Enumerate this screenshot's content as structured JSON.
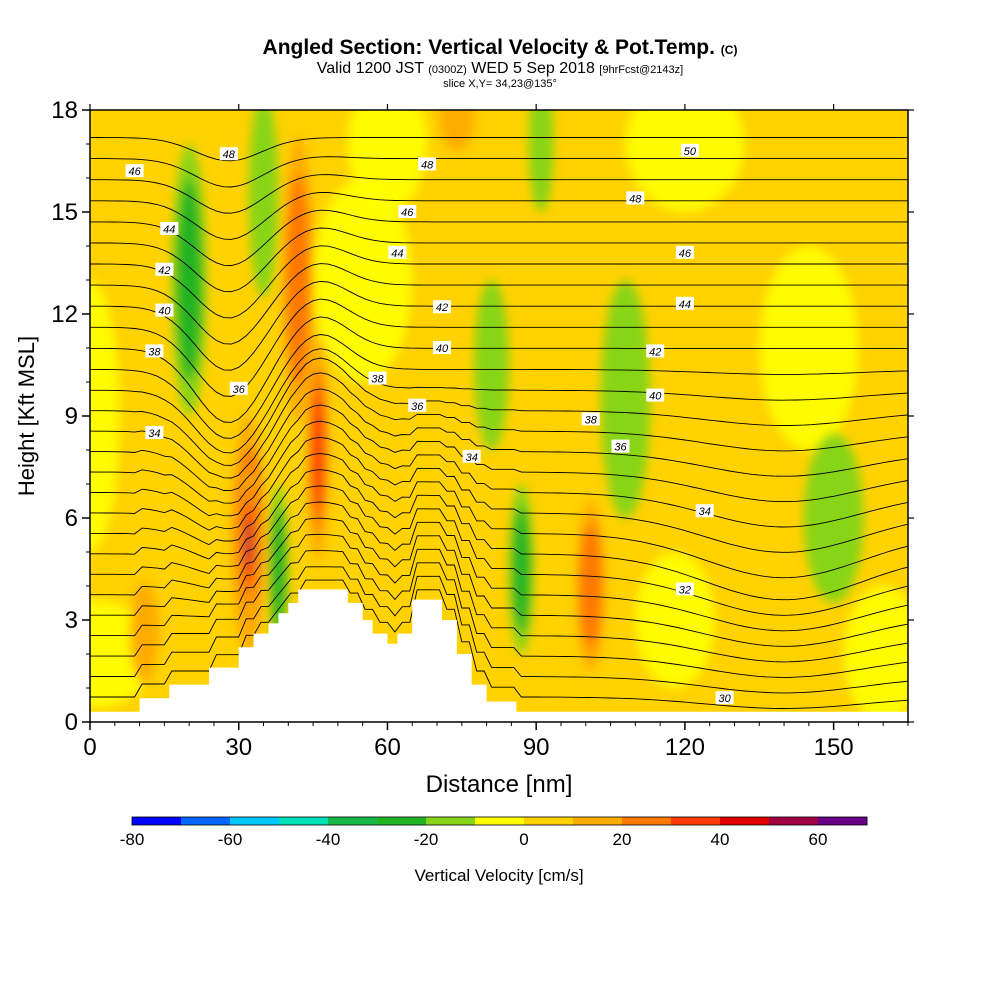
{
  "header": {
    "title_main": "Angled Section: Vertical Velocity & Pot.Temp.",
    "title_mark": "(C)",
    "valid_prefix": "Valid 1200 JST",
    "valid_zone": "(0300Z)",
    "valid_date": "WED 5 Sep 2018",
    "valid_fcst": "[9hrFcst@2143z]",
    "slice": "slice X,Y= 34,23@135°"
  },
  "chart_data": {
    "type": "heatmap",
    "title": "Angled Section: Vertical Velocity & Pot.Temp.",
    "xlabel": "Distance [nm]",
    "ylabel": "Height [Kft MSL]",
    "xlim": [
      0,
      165
    ],
    "ylim": [
      0,
      18
    ],
    "xticks": [
      0,
      30,
      60,
      90,
      120,
      150
    ],
    "yticks": [
      0,
      3,
      6,
      9,
      12,
      15,
      18
    ],
    "colorbar": {
      "label": "Vertical Velocity [cm/s]",
      "tick_labels": [
        -80,
        -60,
        -40,
        -20,
        0,
        20,
        40,
        60
      ],
      "levels": [
        -80,
        -70,
        -60,
        -50,
        -40,
        -30,
        -20,
        -10,
        0,
        10,
        20,
        30,
        40,
        50,
        60,
        70
      ],
      "colors": [
        "#0000ff",
        "#0066ff",
        "#00c8ff",
        "#00e0b8",
        "#19b848",
        "#22b422",
        "#88d418",
        "#ffff00",
        "#ffd200",
        "#ffac00",
        "#ff7800",
        "#ff3c00",
        "#e00000",
        "#a00040",
        "#6a0088"
      ]
    },
    "terrain": [
      [
        0,
        0.3
      ],
      [
        10,
        0.3
      ],
      [
        10,
        0.7
      ],
      [
        16,
        0.7
      ],
      [
        16,
        1.1
      ],
      [
        24,
        1.1
      ],
      [
        24,
        1.6
      ],
      [
        30,
        1.6
      ],
      [
        30,
        2.2
      ],
      [
        33,
        2.2
      ],
      [
        33,
        2.6
      ],
      [
        36,
        2.6
      ],
      [
        36,
        2.9
      ],
      [
        38,
        2.9
      ],
      [
        38,
        3.2
      ],
      [
        40,
        3.2
      ],
      [
        40,
        3.5
      ],
      [
        42,
        3.5
      ],
      [
        42,
        3.9
      ],
      [
        52,
        3.9
      ],
      [
        52,
        3.5
      ],
      [
        55,
        3.5
      ],
      [
        55,
        3.0
      ],
      [
        57,
        3.0
      ],
      [
        57,
        2.6
      ],
      [
        60,
        2.6
      ],
      [
        60,
        2.3
      ],
      [
        62,
        2.3
      ],
      [
        62,
        2.6
      ],
      [
        65,
        2.6
      ],
      [
        65,
        3.6
      ],
      [
        71,
        3.6
      ],
      [
        71,
        3.0
      ],
      [
        74,
        3.0
      ],
      [
        74,
        2.0
      ],
      [
        77,
        2.0
      ],
      [
        77,
        1.1
      ],
      [
        80,
        1.1
      ],
      [
        80,
        0.6
      ],
      [
        86,
        0.6
      ],
      [
        86,
        0.3
      ],
      [
        165,
        0.3
      ]
    ],
    "updraft_cells": [
      {
        "x": 32,
        "y": 5.5,
        "rx": 3.5,
        "ry": 3.5,
        "value": 45
      },
      {
        "x": 32,
        "y": 5.2,
        "rx": 1.8,
        "ry": 2.3,
        "value": 62
      },
      {
        "x": 46,
        "y": 8.0,
        "rx": 2.2,
        "ry": 3.3,
        "value": 38
      },
      {
        "x": 42,
        "y": 13.0,
        "rx": 3.2,
        "ry": 4.2,
        "value": 32
      },
      {
        "x": 101,
        "y": 4.0,
        "rx": 3.0,
        "ry": 2.5,
        "value": 28
      },
      {
        "x": 74,
        "y": 17.8,
        "rx": 3.5,
        "ry": 1.0,
        "value": 20
      },
      {
        "x": 11,
        "y": 2.6,
        "rx": 3.0,
        "ry": 1.5,
        "value": 15
      },
      {
        "x": 134,
        "y": 10.0,
        "rx": 4.0,
        "ry": 3.5,
        "value": 14
      }
    ],
    "downdraft_cells": [
      {
        "x": 20,
        "y": 13.0,
        "rx": 3.5,
        "ry": 4.0,
        "value": -25
      },
      {
        "x": 35,
        "y": 15.5,
        "rx": 3.0,
        "ry": 3.0,
        "value": -22
      },
      {
        "x": 38,
        "y": 4.5,
        "rx": 2.0,
        "ry": 2.5,
        "value": -25
      },
      {
        "x": 81,
        "y": 10.5,
        "rx": 3.5,
        "ry": 2.5,
        "value": -22
      },
      {
        "x": 87,
        "y": 4.5,
        "rx": 2.5,
        "ry": 2.5,
        "value": -28
      },
      {
        "x": 91,
        "y": 17.0,
        "rx": 2.5,
        "ry": 2.0,
        "value": -22
      },
      {
        "x": 108,
        "y": 9.5,
        "rx": 5.0,
        "ry": 3.5,
        "value": -15
      },
      {
        "x": 150,
        "y": 6.0,
        "rx": 6.0,
        "ry": 2.5,
        "value": -15
      },
      {
        "x": 136,
        "y": 16.5,
        "rx": 4.0,
        "ry": 2.0,
        "value": -14
      }
    ],
    "theta_labels": [
      {
        "x": 9,
        "y": 16.2,
        "text": "46"
      },
      {
        "x": 28,
        "y": 16.7,
        "text": "48"
      },
      {
        "x": 16,
        "y": 14.5,
        "text": "44"
      },
      {
        "x": 15,
        "y": 13.3,
        "text": "42"
      },
      {
        "x": 15,
        "y": 12.1,
        "text": "40"
      },
      {
        "x": 13,
        "y": 10.9,
        "text": "38"
      },
      {
        "x": 30,
        "y": 9.8,
        "text": "36"
      },
      {
        "x": 13,
        "y": 8.5,
        "text": "34"
      },
      {
        "x": 68,
        "y": 16.4,
        "text": "48"
      },
      {
        "x": 64,
        "y": 15.0,
        "text": "46"
      },
      {
        "x": 62,
        "y": 13.8,
        "text": "44"
      },
      {
        "x": 71,
        "y": 12.2,
        "text": "42"
      },
      {
        "x": 71,
        "y": 11.0,
        "text": "40"
      },
      {
        "x": 58,
        "y": 10.1,
        "text": "38"
      },
      {
        "x": 66,
        "y": 9.3,
        "text": "36"
      },
      {
        "x": 77,
        "y": 7.8,
        "text": "34"
      },
      {
        "x": 121,
        "y": 16.8,
        "text": "50"
      },
      {
        "x": 110,
        "y": 15.4,
        "text": "48"
      },
      {
        "x": 120,
        "y": 13.8,
        "text": "46"
      },
      {
        "x": 120,
        "y": 12.3,
        "text": "44"
      },
      {
        "x": 114,
        "y": 10.9,
        "text": "42"
      },
      {
        "x": 114,
        "y": 9.6,
        "text": "40"
      },
      {
        "x": 101,
        "y": 8.9,
        "text": "38"
      },
      {
        "x": 107,
        "y": 8.1,
        "text": "36"
      },
      {
        "x": 124,
        "y": 6.2,
        "text": "34"
      },
      {
        "x": 120,
        "y": 3.9,
        "text": "32"
      },
      {
        "x": 128,
        "y": 0.7,
        "text": "30"
      }
    ]
  }
}
